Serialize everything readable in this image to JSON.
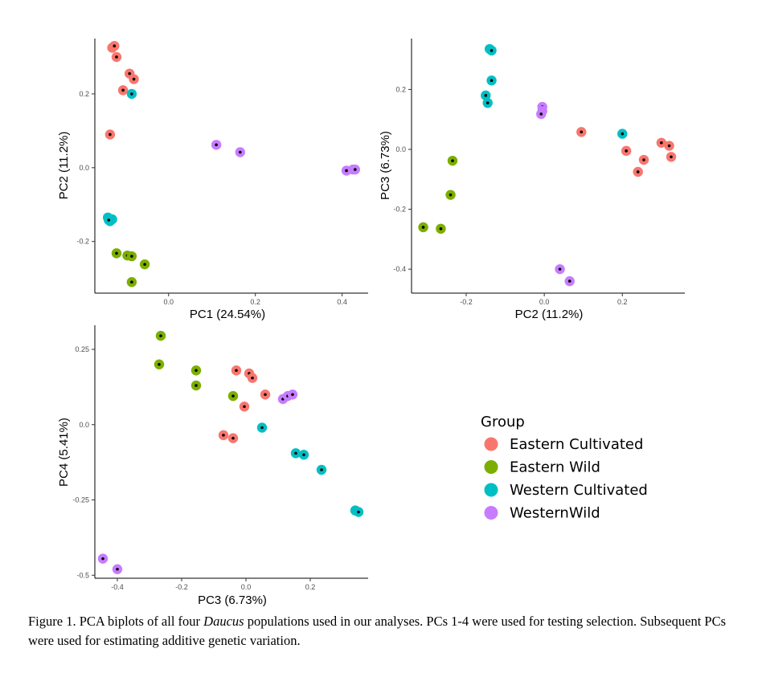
{
  "colors": {
    "Eastern Cultivated": "#F8766D",
    "Eastern Wild": "#7CAE00",
    "Western Cultivated": "#00BFC4",
    "WesternWild": "#C77CFF"
  },
  "legend": {
    "title": "Group",
    "items": [
      "Eastern Cultivated",
      "Eastern Wild",
      "Western Cultivated",
      "WesternWild"
    ]
  },
  "caption": {
    "prefix": "Figure 1. PCA biplots of all four ",
    "italic": "Daucus",
    "suffix": " populations used in our analyses. PCs 1-4 were used for testing selection. Subsequent PCs were used for estimating additive genetic variation."
  },
  "chart_data": [
    {
      "type": "scatter",
      "xlabel": "PC1 (24.54%)",
      "ylabel": "PC2 (11.2%)",
      "xlim": [
        -0.17,
        0.46
      ],
      "ylim": [
        -0.34,
        0.35
      ],
      "xticks": [
        0.0,
        0.2,
        0.4
      ],
      "yticks": [
        -0.2,
        0.0,
        0.2
      ],
      "series": [
        {
          "name": "Eastern Cultivated",
          "points": [
            [
              -0.13,
              0.325
            ],
            [
              -0.125,
              0.33
            ],
            [
              -0.12,
              0.3
            ],
            [
              -0.09,
              0.255
            ],
            [
              -0.08,
              0.24
            ],
            [
              -0.105,
              0.21
            ],
            [
              -0.135,
              0.09
            ]
          ]
        },
        {
          "name": "Eastern Wild",
          "points": [
            [
              -0.12,
              -0.232
            ],
            [
              -0.095,
              -0.238
            ],
            [
              -0.085,
              -0.24
            ],
            [
              -0.055,
              -0.262
            ],
            [
              -0.085,
              -0.31
            ]
          ]
        },
        {
          "name": "Western Cultivated",
          "points": [
            [
              -0.085,
              0.2
            ],
            [
              -0.14,
              -0.135
            ],
            [
              -0.135,
              -0.145
            ],
            [
              -0.13,
              -0.14
            ],
            [
              -0.138,
              -0.142
            ]
          ]
        },
        {
          "name": "WesternWild",
          "points": [
            [
              0.11,
              0.062
            ],
            [
              0.165,
              0.042
            ],
            [
              0.41,
              -0.008
            ],
            [
              0.425,
              -0.005
            ],
            [
              0.43,
              -0.005
            ]
          ]
        }
      ]
    },
    {
      "type": "scatter",
      "xlabel": "PC2 (11.2%)",
      "ylabel": "PC3 (6.73%)",
      "xlim": [
        -0.34,
        0.36
      ],
      "ylim": [
        -0.48,
        0.37
      ],
      "xticks": [
        -0.2,
        0.0,
        0.2
      ],
      "yticks": [
        -0.4,
        -0.2,
        0.0,
        0.2
      ],
      "series": [
        {
          "name": "Eastern Cultivated",
          "points": [
            [
              0.095,
              0.058
            ],
            [
              0.21,
              -0.005
            ],
            [
              0.24,
              -0.075
            ],
            [
              0.255,
              -0.035
            ],
            [
              0.3,
              0.022
            ],
            [
              0.32,
              0.012
            ],
            [
              0.325,
              -0.025
            ]
          ]
        },
        {
          "name": "Eastern Wild",
          "points": [
            [
              -0.235,
              -0.038
            ],
            [
              -0.24,
              -0.152
            ],
            [
              -0.31,
              -0.26
            ],
            [
              -0.265,
              -0.265
            ]
          ]
        },
        {
          "name": "Western Cultivated",
          "points": [
            [
              -0.14,
              0.335
            ],
            [
              -0.135,
              0.33
            ],
            [
              -0.135,
              0.23
            ],
            [
              -0.15,
              0.18
            ],
            [
              -0.145,
              0.155
            ],
            [
              0.2,
              0.052
            ]
          ]
        },
        {
          "name": "WesternWild",
          "points": [
            [
              -0.005,
              0.142
            ],
            [
              -0.005,
              0.128
            ],
            [
              -0.008,
              0.118
            ],
            [
              0.04,
              -0.4
            ],
            [
              0.065,
              -0.44
            ]
          ]
        }
      ]
    },
    {
      "type": "scatter",
      "xlabel": "PC3 (6.73%)",
      "ylabel": "PC4 (5.41%)",
      "xlim": [
        -0.47,
        0.38
      ],
      "ylim": [
        -0.51,
        0.33
      ],
      "xticks": [
        -0.4,
        -0.2,
        0.0,
        0.2
      ],
      "yticks": [
        -0.5,
        -0.25,
        0.0,
        0.25
      ],
      "series": [
        {
          "name": "Eastern Cultivated",
          "points": [
            [
              -0.03,
              0.18
            ],
            [
              0.01,
              0.17
            ],
            [
              0.02,
              0.155
            ],
            [
              0.06,
              0.1
            ],
            [
              -0.005,
              0.06
            ],
            [
              -0.07,
              -0.035
            ],
            [
              -0.04,
              -0.045
            ]
          ]
        },
        {
          "name": "Eastern Wild",
          "points": [
            [
              -0.265,
              0.295
            ],
            [
              -0.27,
              0.2
            ],
            [
              -0.155,
              0.18
            ],
            [
              -0.155,
              0.13
            ],
            [
              -0.04,
              0.095
            ]
          ]
        },
        {
          "name": "Western Cultivated",
          "points": [
            [
              0.05,
              -0.01
            ],
            [
              0.155,
              -0.095
            ],
            [
              0.18,
              -0.1
            ],
            [
              0.235,
              -0.15
            ],
            [
              0.34,
              -0.285
            ],
            [
              0.35,
              -0.29
            ]
          ]
        },
        {
          "name": "WesternWild",
          "points": [
            [
              0.115,
              0.085
            ],
            [
              0.13,
              0.095
            ],
            [
              0.145,
              0.1
            ],
            [
              -0.445,
              -0.445
            ],
            [
              -0.4,
              -0.48
            ]
          ]
        }
      ]
    }
  ]
}
